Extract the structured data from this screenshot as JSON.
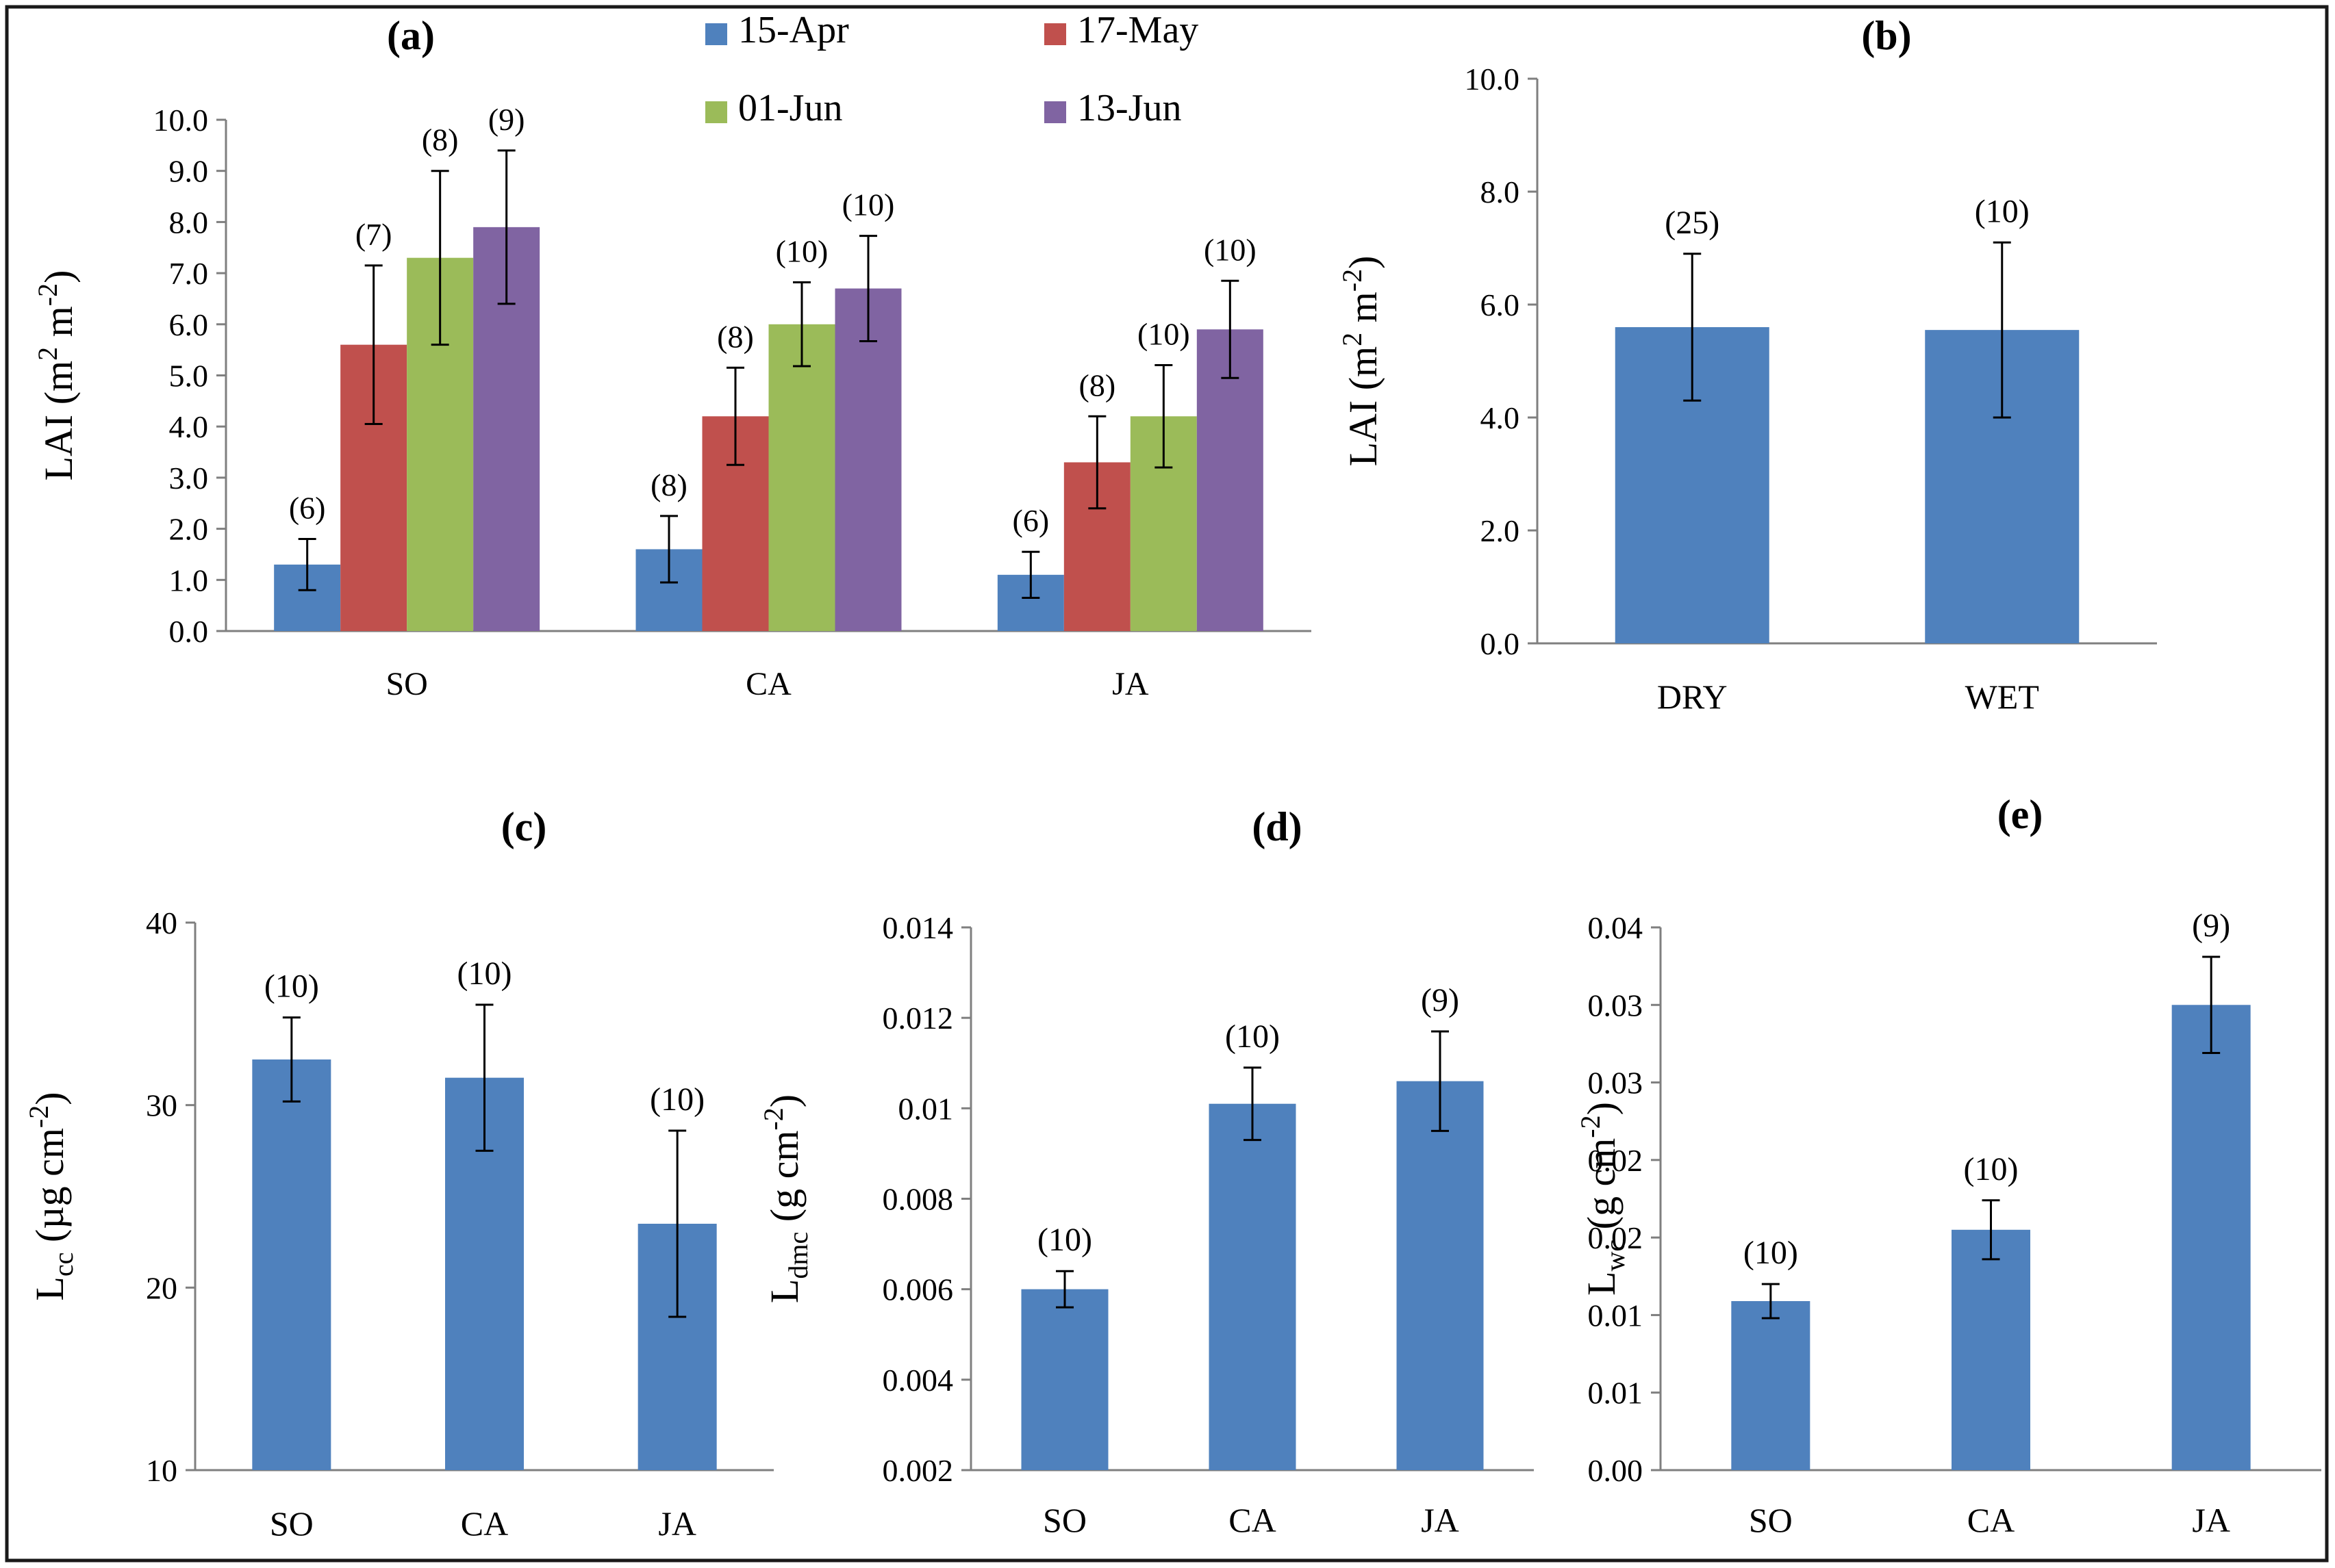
{
  "colors": {
    "frame": "#1a1a1a",
    "apr": "#4F81BD",
    "may": "#C0504D",
    "jun1": "#9BBB59",
    "jun13": "#8064A2",
    "bar": "#4F81BD"
  },
  "chart_data": [
    {
      "id": "a",
      "type": "bar",
      "panel_label": "(a)",
      "title": "(a)",
      "ylabel": "LAI (m2 m-2)",
      "ylabel_parts": {
        "base": "LAI (m",
        "sup1": "2",
        "mid": " m",
        "sup2": "-2",
        "end": ")"
      },
      "ylim": [
        0,
        10
      ],
      "yticks": [
        "0.0",
        "1.0",
        "2.0",
        "3.0",
        "4.0",
        "5.0",
        "6.0",
        "7.0",
        "8.0",
        "9.0",
        "10.0"
      ],
      "categories": [
        "SO",
        "CA",
        "JA"
      ],
      "legend_position": "top",
      "series": [
        {
          "name": "15-Apr",
          "color": "#4F81BD",
          "values": [
            1.3,
            1.6,
            1.1
          ],
          "err": [
            0.5,
            0.65,
            0.45
          ],
          "n_labels": [
            "(6)",
            "(8)",
            "(6)"
          ]
        },
        {
          "name": "17-May",
          "color": "#C0504D",
          "values": [
            5.6,
            4.2,
            3.3
          ],
          "err": [
            1.55,
            0.95,
            0.9
          ],
          "n_labels": [
            "(7)",
            "(8)",
            "(8)"
          ]
        },
        {
          "name": "01-Jun",
          "color": "#9BBB59",
          "values": [
            7.3,
            6.0,
            4.2
          ],
          "err": [
            1.7,
            0.82,
            1.0
          ],
          "n_labels": [
            "(8)",
            "(10)",
            "(10)"
          ]
        },
        {
          "name": "13-Jun",
          "color": "#8064A2",
          "values": [
            7.9,
            6.7,
            5.9
          ],
          "err": [
            1.5,
            1.03,
            0.95
          ],
          "n_labels": [
            "(9)",
            "(10)",
            "(10)"
          ]
        }
      ]
    },
    {
      "id": "b",
      "type": "bar",
      "panel_label": "(b)",
      "title": "(b)",
      "ylabel": "LAI (m2 m-2)",
      "ylabel_parts": {
        "base": "LAI (m",
        "sup1": "2",
        "mid": " m",
        "sup2": "-2",
        "end": ")"
      },
      "ylim": [
        0,
        10
      ],
      "yticks": [
        "0.0",
        "2.0",
        "4.0",
        "6.0",
        "8.0",
        "10.0"
      ],
      "categories": [
        "DRY",
        "WET"
      ],
      "values": [
        5.6,
        5.55
      ],
      "err": [
        1.3,
        1.55
      ],
      "n_labels": [
        "(25)",
        "(10)"
      ]
    },
    {
      "id": "c",
      "type": "bar",
      "panel_label": "(c)",
      "title": "(c)",
      "ylabel": "Lcc (µg cm-2)",
      "ylabel_parts": {
        "base": "L",
        "sub": "cc",
        "mid": " (µg cm",
        "sup": "-2",
        "end": ")"
      },
      "ylim": [
        10,
        40
      ],
      "yticks": [
        "10",
        "20",
        "30",
        "40"
      ],
      "categories": [
        "SO",
        "CA",
        "JA"
      ],
      "values": [
        32.5,
        31.5,
        23.5
      ],
      "err": [
        2.3,
        4.0,
        5.1
      ],
      "n_labels": [
        "(10)",
        "(10)",
        "(10)"
      ]
    },
    {
      "id": "d",
      "type": "bar",
      "panel_label": "(d)",
      "title": "(d)",
      "ylabel": "Ldmc (g cm-2)",
      "ylabel_parts": {
        "base": "L",
        "sub": "dmc",
        "mid": " (g cm",
        "sup": "-2",
        "end": ")"
      },
      "ylim": [
        0.002,
        0.014
      ],
      "yticks": [
        "0.002",
        "0.004",
        "0.006",
        "0.008",
        "0.01",
        "0.012",
        "0.014"
      ],
      "categories": [
        "SO",
        "CA",
        "JA"
      ],
      "values": [
        0.006,
        0.0101,
        0.0106
      ],
      "err": [
        0.0004,
        0.0008,
        0.0011
      ],
      "n_labels": [
        "(10)",
        "(10)",
        "(9)"
      ]
    },
    {
      "id": "e",
      "type": "bar",
      "panel_label": "(e)",
      "title": "(e)",
      "ylabel": "Lwc (g cm-2)",
      "ylabel_parts": {
        "base": "L",
        "sub": "wc",
        "mid": " (g cm",
        "sup": "-2",
        "end": ")"
      },
      "ylim": [
        0,
        0.035
      ],
      "yticks": [
        "0.00",
        "0.01",
        "0.01",
        "0.02",
        "0.02",
        "0.03",
        "0.03",
        "0.04"
      ],
      "categories": [
        "SO",
        "CA",
        "JA"
      ],
      "values": [
        0.0109,
        0.0155,
        0.03
      ],
      "err": [
        0.0011,
        0.0019,
        0.0031
      ],
      "n_labels": [
        "(10)",
        "(10)",
        "(9)"
      ]
    }
  ]
}
